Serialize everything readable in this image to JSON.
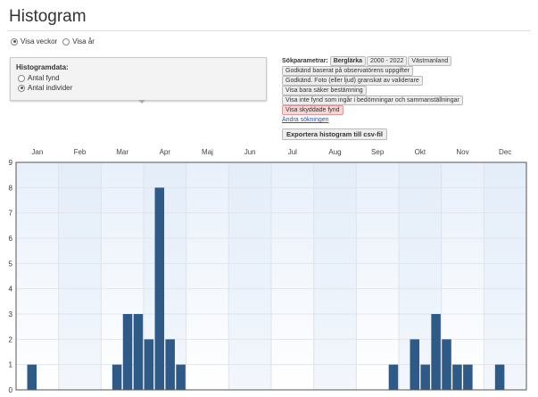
{
  "title": "Histogram",
  "view_options": [
    {
      "label": "Visa veckor",
      "selected": true
    },
    {
      "label": "Visa år",
      "selected": false
    }
  ],
  "histogram_data": {
    "heading": "Histogramdata:",
    "options": [
      {
        "label": "Antal fynd",
        "selected": false
      },
      {
        "label": "Antal individer",
        "selected": true
      }
    ]
  },
  "search_params": {
    "label": "Sökparametrar:",
    "chips": [
      "Berglärka",
      "2000 - 2022",
      "Västmanland"
    ],
    "filters": [
      "Godkänd baserat på observatörens uppgifter",
      "Godkänd. Foto (eller ljud) granskat av validerare",
      "Visa bara säker bestämning",
      "Visa inte fynd som ingår i bedömningar och sammanställningar"
    ],
    "protected": "Visa skyddade fynd",
    "change_link": "Ändra sökningen"
  },
  "export_button": "Exportera histogram till csv-fil",
  "chart_data": {
    "type": "bar",
    "months": [
      "Jan",
      "Feb",
      "Mar",
      "Apr",
      "Maj",
      "Jun",
      "Jul",
      "Aug",
      "Sep",
      "Okt",
      "Nov",
      "Dec"
    ],
    "bins_per_month": 4,
    "values": [
      0,
      1,
      0,
      0,
      0,
      0,
      0,
      0,
      0,
      1,
      3,
      3,
      2,
      8,
      2,
      1,
      0,
      0,
      0,
      0,
      0,
      0,
      0,
      0,
      0,
      0,
      0,
      0,
      0,
      0,
      0,
      0,
      0,
      0,
      0,
      1,
      0,
      2,
      1,
      3,
      2,
      1,
      1,
      0,
      0,
      1,
      0,
      0
    ],
    "ylim": [
      0,
      9
    ],
    "yticks": [
      "0",
      "1",
      "2",
      "3",
      "4",
      "5",
      "6",
      "7",
      "8",
      "9"
    ],
    "grid": true,
    "bar_color": "#2e5a87"
  }
}
